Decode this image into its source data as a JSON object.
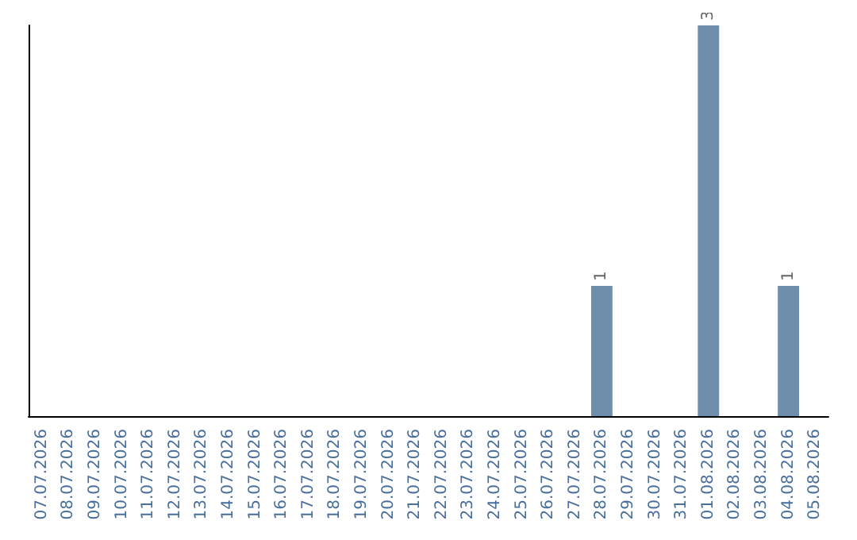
{
  "chart_data": {
    "type": "bar",
    "categories": [
      "07.07.2026",
      "08.07.2026",
      "09.07.2026",
      "10.07.2026",
      "11.07.2026",
      "12.07.2026",
      "13.07.2026",
      "14.07.2026",
      "15.07.2026",
      "16.07.2026",
      "17.07.2026",
      "18.07.2026",
      "19.07.2026",
      "20.07.2026",
      "21.07.2026",
      "22.07.2026",
      "23.07.2026",
      "24.07.2026",
      "25.07.2026",
      "26.07.2026",
      "27.07.2026",
      "28.07.2026",
      "29.07.2026",
      "30.07.2026",
      "31.07.2026",
      "01.08.2026",
      "02.08.2026",
      "03.08.2026",
      "04.08.2026",
      "05.08.2026"
    ],
    "values": [
      null,
      null,
      null,
      null,
      null,
      null,
      null,
      null,
      null,
      null,
      null,
      null,
      null,
      null,
      null,
      null,
      null,
      null,
      null,
      null,
      null,
      1,
      null,
      null,
      null,
      3,
      null,
      null,
      1,
      null
    ],
    "data_labels": true,
    "color": "#6e8eac",
    "grid": false,
    "tick_labels": "x"
  }
}
